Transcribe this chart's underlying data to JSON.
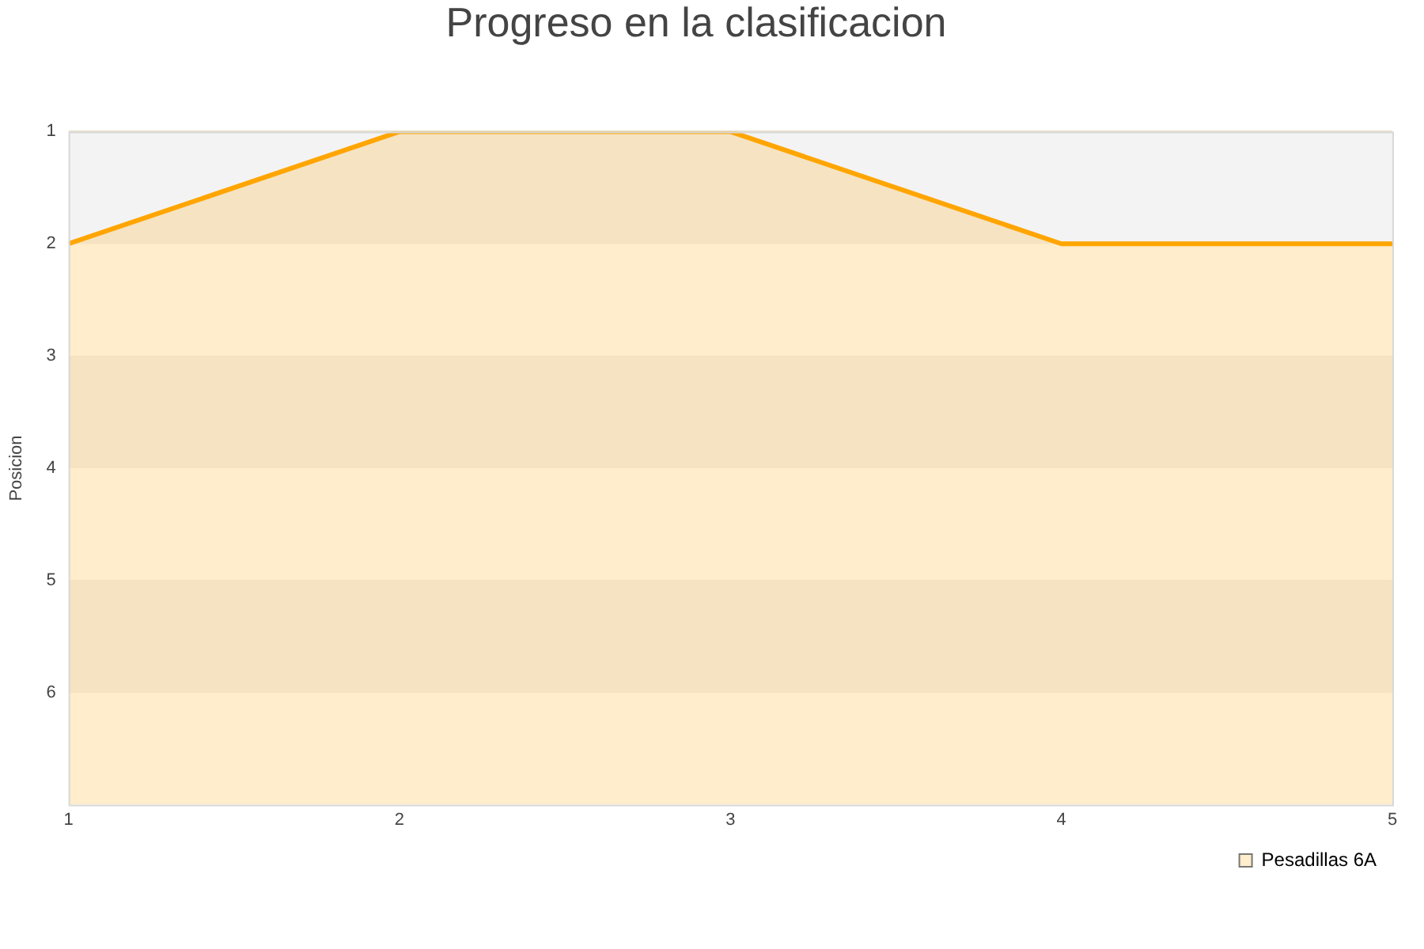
{
  "chart_data": {
    "type": "area",
    "title": "Progreso en la clasificacion",
    "ylabel": "Posicion",
    "x": [
      1,
      2,
      3,
      4,
      5
    ],
    "series": [
      {
        "name": "Pesadillas 6A",
        "color": "#ffa500",
        "values": [
          2,
          1,
          1,
          2,
          2
        ]
      }
    ],
    "xlim": [
      1,
      5
    ],
    "xticks": [
      1,
      2,
      3,
      4,
      5
    ],
    "ylim": [
      7,
      1
    ],
    "yticks": [
      1,
      2,
      3,
      4,
      5,
      6
    ],
    "grid": "y",
    "legend": "bottom right"
  }
}
